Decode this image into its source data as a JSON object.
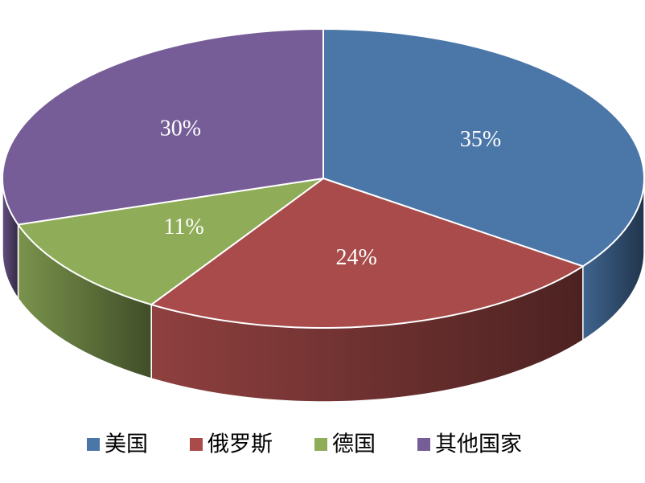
{
  "chart_data": {
    "type": "pie",
    "categories": [
      "美国",
      "俄罗斯",
      "德国",
      "其他国家"
    ],
    "values": [
      35,
      24,
      11,
      30
    ],
    "value_labels": [
      "35%",
      "24%",
      "11%",
      "30%"
    ],
    "colors": [
      "#4a76a8",
      "#a84b4a",
      "#8fad59",
      "#765d97"
    ],
    "legend": "bottom"
  }
}
